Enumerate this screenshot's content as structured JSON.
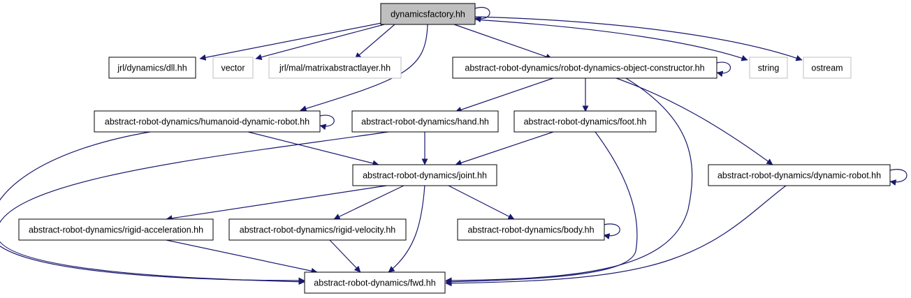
{
  "graph": {
    "edge_color": "#191970",
    "external_border_color": "#bfbfbf",
    "root_fill_color": "#bfbfbf",
    "nodes": {
      "root": {
        "label": "dynamicsfactory.hh"
      },
      "dll": {
        "label": "jrl/dynamics/dll.hh"
      },
      "vector": {
        "label": "vector"
      },
      "matrix": {
        "label": "jrl/mal/matrixabstractlayer.hh"
      },
      "constructor": {
        "label": "abstract-robot-dynamics/robot-dynamics-object-constructor.hh"
      },
      "string": {
        "label": "string"
      },
      "ostream": {
        "label": "ostream"
      },
      "humanoid": {
        "label": "abstract-robot-dynamics/humanoid-dynamic-robot.hh"
      },
      "hand": {
        "label": "abstract-robot-dynamics/hand.hh"
      },
      "foot": {
        "label": "abstract-robot-dynamics/foot.hh"
      },
      "joint": {
        "label": "abstract-robot-dynamics/joint.hh"
      },
      "dynrobot": {
        "label": "abstract-robot-dynamics/dynamic-robot.hh"
      },
      "rigidacc": {
        "label": "abstract-robot-dynamics/rigid-acceleration.hh"
      },
      "rigidvel": {
        "label": "abstract-robot-dynamics/rigid-velocity.hh"
      },
      "body": {
        "label": "abstract-robot-dynamics/body.hh"
      },
      "fwd": {
        "label": "abstract-robot-dynamics/fwd.hh"
      }
    }
  }
}
